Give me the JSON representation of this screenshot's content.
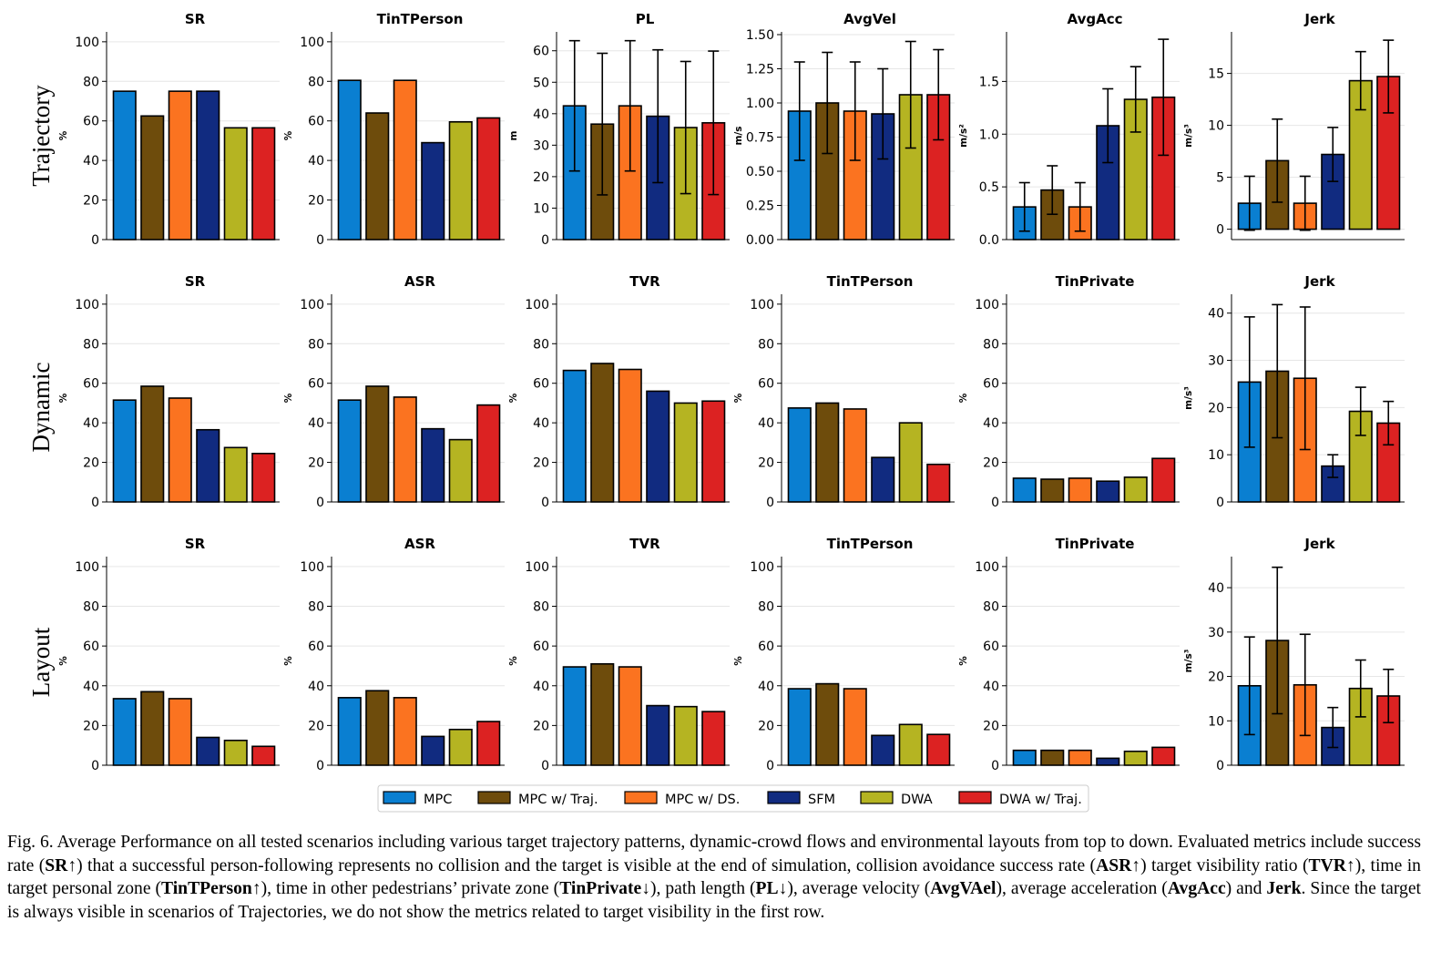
{
  "colors": {
    "MPC": "#0a7fd1",
    "MPC w/ Traj.": "#6e4c0c",
    "MPC w/ DS.": "#fb7320",
    "SFM": "#112b80",
    "DWA": "#b5b422",
    "DWA w/ Traj.": "#dc2222"
  },
  "legend": [
    "MPC",
    "MPC w/ Traj.",
    "MPC w/ DS.",
    "SFM",
    "DWA",
    "DWA w/ Traj."
  ],
  "row_labels": [
    "Trajectory",
    "Dynamic",
    "Layout"
  ],
  "chart_data": [
    {
      "type": "bar",
      "row": "Trajectory",
      "title": "SR",
      "ylabel": "%",
      "ylim": [
        0,
        105
      ],
      "yticks": [
        0,
        20,
        40,
        60,
        80,
        100
      ],
      "tick_labels": [
        "0",
        "20",
        "40",
        "60",
        "80",
        "100"
      ],
      "values": [
        75,
        62.5,
        75,
        75,
        56.5,
        56.5
      ]
    },
    {
      "type": "bar",
      "row": "Trajectory",
      "title": "TinTPerson",
      "ylabel": "%",
      "ylim": [
        0,
        105
      ],
      "yticks": [
        0,
        20,
        40,
        60,
        80,
        100
      ],
      "tick_labels": [
        "0",
        "20",
        "40",
        "60",
        "80",
        "100"
      ],
      "values": [
        80.5,
        64,
        80.5,
        49,
        59.5,
        61.5
      ]
    },
    {
      "type": "bar",
      "row": "Trajectory",
      "title": "PL",
      "ylabel": "m",
      "ylim": [
        0,
        66
      ],
      "yticks": [
        0,
        10,
        20,
        30,
        40,
        50,
        60
      ],
      "tick_labels": [
        "0",
        "10",
        "20",
        "30",
        "40",
        "50",
        "60"
      ],
      "values": [
        42.5,
        36.7,
        42.5,
        39.2,
        35.6,
        37.1
      ],
      "errors": [
        20.7,
        22.5,
        20.7,
        21.1,
        21,
        22.8
      ]
    },
    {
      "type": "bar",
      "row": "Trajectory",
      "title": "AvgVel",
      "ylabel": "m/s",
      "ylim": [
        0,
        1.52
      ],
      "yticks": [
        0,
        0.25,
        0.5,
        0.75,
        1,
        1.25,
        1.5
      ],
      "tick_labels": [
        "0.00",
        "0.25",
        "0.50",
        "0.75",
        "1.00",
        "1.25",
        "1.50"
      ],
      "values": [
        0.94,
        1.0,
        0.94,
        0.92,
        1.06,
        1.06
      ],
      "errors": [
        0.36,
        0.37,
        0.36,
        0.33,
        0.39,
        0.33
      ]
    },
    {
      "type": "bar",
      "row": "Trajectory",
      "title": "AvgAcc",
      "ylabel": "m/s²",
      "ylim": [
        0,
        1.97
      ],
      "yticks": [
        0,
        0.5,
        1,
        1.5
      ],
      "tick_labels": [
        "0.0",
        "0.5",
        "1.0",
        "1.5"
      ],
      "values": [
        0.31,
        0.47,
        0.31,
        1.08,
        1.33,
        1.35
      ],
      "errors": [
        0.23,
        0.23,
        0.23,
        0.35,
        0.31,
        0.55
      ]
    },
    {
      "type": "bar",
      "row": "Trajectory",
      "title": "Jerk",
      "ylabel": "m/s³",
      "ylim": [
        -1,
        19
      ],
      "yticks": [
        0,
        5,
        10,
        15
      ],
      "tick_labels": [
        "0",
        "5",
        "10",
        "15"
      ],
      "values": [
        2.5,
        6.6,
        2.5,
        7.2,
        14.3,
        14.7
      ],
      "errors": [
        2.6,
        4,
        2.6,
        2.6,
        2.8,
        3.5
      ]
    },
    {
      "type": "bar",
      "row": "Dynamic",
      "title": "SR",
      "ylabel": "%",
      "ylim": [
        0,
        105
      ],
      "yticks": [
        0,
        20,
        40,
        60,
        80,
        100
      ],
      "tick_labels": [
        "0",
        "20",
        "40",
        "60",
        "80",
        "100"
      ],
      "values": [
        51.5,
        58.5,
        52.5,
        36.5,
        27.5,
        24.5
      ]
    },
    {
      "type": "bar",
      "row": "Dynamic",
      "title": "ASR",
      "ylabel": "%",
      "ylim": [
        0,
        105
      ],
      "yticks": [
        0,
        20,
        40,
        60,
        80,
        100
      ],
      "tick_labels": [
        "0",
        "20",
        "40",
        "60",
        "80",
        "100"
      ],
      "values": [
        51.5,
        58.5,
        53,
        37,
        31.5,
        49
      ]
    },
    {
      "type": "bar",
      "row": "Dynamic",
      "title": "TVR",
      "ylabel": "%",
      "ylim": [
        0,
        105
      ],
      "yticks": [
        0,
        20,
        40,
        60,
        80,
        100
      ],
      "tick_labels": [
        "0",
        "20",
        "40",
        "60",
        "80",
        "100"
      ],
      "values": [
        66.5,
        70,
        67,
        56,
        50,
        51
      ]
    },
    {
      "type": "bar",
      "row": "Dynamic",
      "title": "TinTPerson",
      "ylabel": "%",
      "ylim": [
        0,
        105
      ],
      "yticks": [
        0,
        20,
        40,
        60,
        80,
        100
      ],
      "tick_labels": [
        "0",
        "20",
        "40",
        "60",
        "80",
        "100"
      ],
      "values": [
        47.5,
        50,
        47,
        22.5,
        40,
        19
      ]
    },
    {
      "type": "bar",
      "row": "Dynamic",
      "title": "TinPrivate",
      "ylabel": "%",
      "ylim": [
        0,
        105
      ],
      "yticks": [
        0,
        20,
        40,
        60,
        80,
        100
      ],
      "tick_labels": [
        "0",
        "20",
        "40",
        "60",
        "80",
        "100"
      ],
      "values": [
        12,
        11.5,
        12,
        10.5,
        12.5,
        22
      ]
    },
    {
      "type": "bar",
      "row": "Dynamic",
      "title": "Jerk",
      "ylabel": "m/s³",
      "ylim": [
        0,
        44
      ],
      "yticks": [
        0,
        10,
        20,
        30,
        40
      ],
      "tick_labels": [
        "0",
        "10",
        "20",
        "30",
        "40"
      ],
      "values": [
        25.4,
        27.7,
        26.2,
        7.6,
        19.2,
        16.7
      ],
      "errors": [
        13.8,
        14.1,
        15.1,
        2.4,
        5.1,
        4.6
      ]
    },
    {
      "type": "bar",
      "row": "Layout",
      "title": "SR",
      "ylabel": "%",
      "ylim": [
        0,
        105
      ],
      "yticks": [
        0,
        20,
        40,
        60,
        80,
        100
      ],
      "tick_labels": [
        "0",
        "20",
        "40",
        "60",
        "80",
        "100"
      ],
      "values": [
        33.5,
        37,
        33.5,
        14,
        12.5,
        9.5
      ]
    },
    {
      "type": "bar",
      "row": "Layout",
      "title": "ASR",
      "ylabel": "%",
      "ylim": [
        0,
        105
      ],
      "yticks": [
        0,
        20,
        40,
        60,
        80,
        100
      ],
      "tick_labels": [
        "0",
        "20",
        "40",
        "60",
        "80",
        "100"
      ],
      "values": [
        34,
        37.5,
        34,
        14.5,
        18,
        22
      ]
    },
    {
      "type": "bar",
      "row": "Layout",
      "title": "TVR",
      "ylabel": "%",
      "ylim": [
        0,
        105
      ],
      "yticks": [
        0,
        20,
        40,
        60,
        80,
        100
      ],
      "tick_labels": [
        "0",
        "20",
        "40",
        "60",
        "80",
        "100"
      ],
      "values": [
        49.5,
        51,
        49.5,
        30,
        29.5,
        27
      ]
    },
    {
      "type": "bar",
      "row": "Layout",
      "title": "TinTPerson",
      "ylabel": "%",
      "ylim": [
        0,
        105
      ],
      "yticks": [
        0,
        20,
        40,
        60,
        80,
        100
      ],
      "tick_labels": [
        "0",
        "20",
        "40",
        "60",
        "80",
        "100"
      ],
      "values": [
        38.5,
        41,
        38.5,
        15,
        20.5,
        15.5
      ]
    },
    {
      "type": "bar",
      "row": "Layout",
      "title": "TinPrivate",
      "ylabel": "%",
      "ylim": [
        0,
        105
      ],
      "yticks": [
        0,
        20,
        40,
        60,
        80,
        100
      ],
      "tick_labels": [
        "0",
        "20",
        "40",
        "60",
        "80",
        "100"
      ],
      "values": [
        7.5,
        7.5,
        7.5,
        3.5,
        7,
        9
      ]
    },
    {
      "type": "bar",
      "row": "Layout",
      "title": "Jerk",
      "ylabel": "m/s³",
      "ylim": [
        0,
        47
      ],
      "yticks": [
        0,
        10,
        20,
        30,
        40
      ],
      "tick_labels": [
        "0",
        "10",
        "20",
        "30",
        "40"
      ],
      "values": [
        17.9,
        28.1,
        18.1,
        8.5,
        17.3,
        15.6
      ],
      "errors": [
        11,
        16.5,
        11.4,
        4.5,
        6.4,
        6
      ]
    }
  ],
  "caption": {
    "p1": "Fig. 6.   Average Performance on all tested scenarios including various target trajectory patterns, dynamic-crowd flows and environmental layouts from top to down. Evaluated metrics include success rate (",
    "b1": "SR",
    "p2": "↑) that a successful person-following represents no collision and the target is visible at the end of simulation, collision avoidance success rate (",
    "b2": "ASR",
    "p3": "↑) target visibility ratio (",
    "b3": "TVR",
    "p4": "↑), time in target personal zone (",
    "b4": "TinTPerson",
    "p5": "↑), time in other pedestrians’ private zone (",
    "b5": "TinPrivate",
    "p6": "↓), path length (",
    "b6": "PL",
    "p7": "↓), average velocity (",
    "b7": "AvgVAel",
    "p8": "), average acceleration (",
    "b8": "AvgAcc",
    "p9": ") and ",
    "b9": "Jerk",
    "p10": ". Since the target is always visible in scenarios of Trajectories, we do not show the metrics related to target visibility in the first row."
  }
}
